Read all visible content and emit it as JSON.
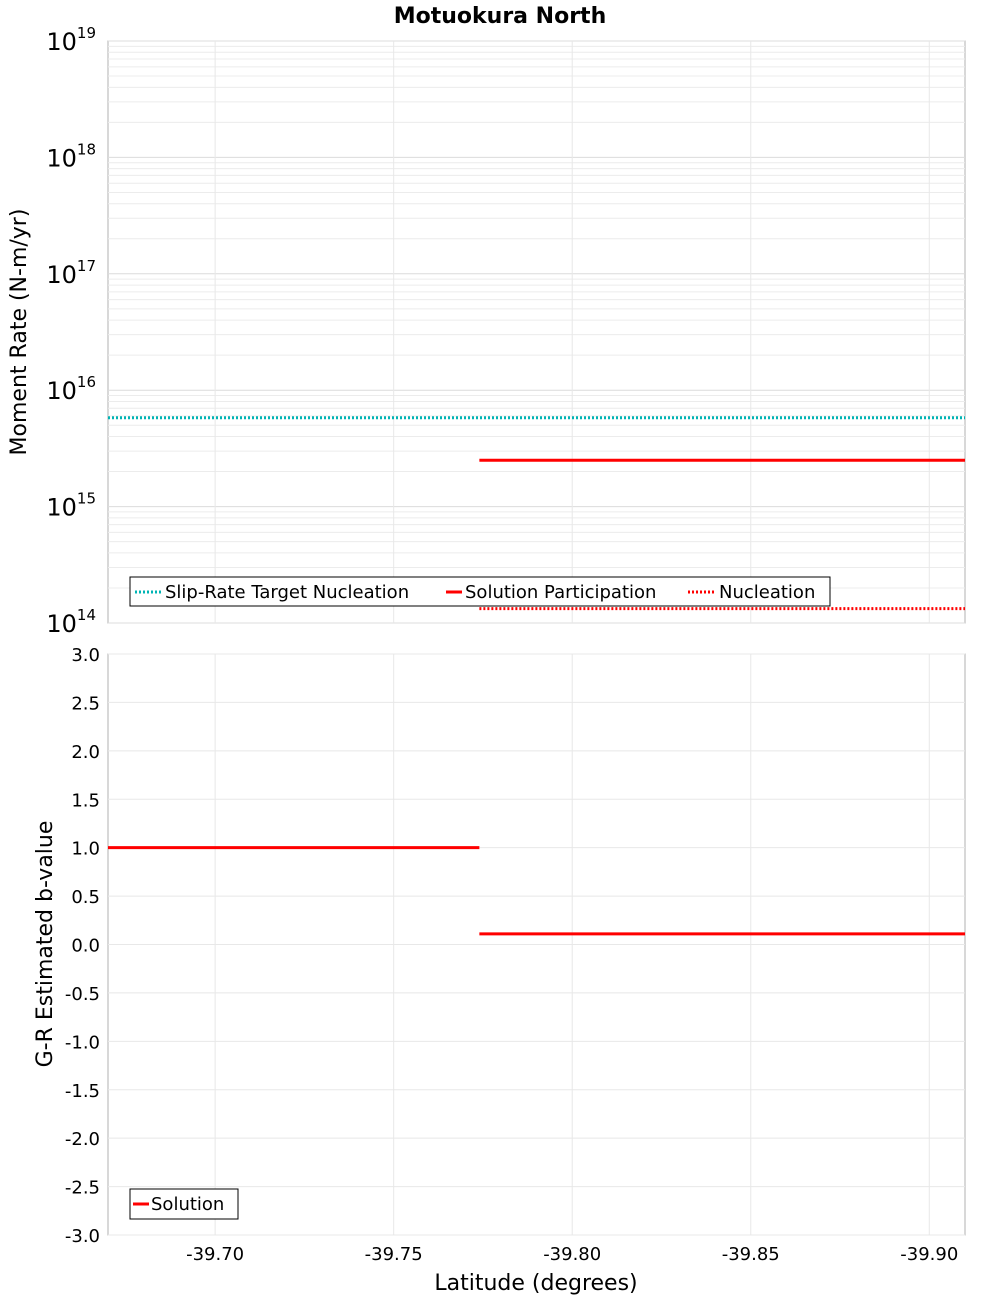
{
  "chart_data": [
    {
      "type": "line",
      "title": "Motuokura North",
      "ylabel": "Moment Rate (N-m/yr)",
      "yscale": "log",
      "ylim": [
        100000000000000.0,
        1e+19
      ],
      "xlim": [
        -39.67,
        -39.91
      ],
      "x_direction": "reversed",
      "grid": true,
      "legend_placement": "bottom-left",
      "ytick_labels": [
        {
          "base": "10",
          "exp": "14"
        },
        {
          "base": "10",
          "exp": "15"
        },
        {
          "base": "10",
          "exp": "16"
        },
        {
          "base": "10",
          "exp": "17"
        },
        {
          "base": "10",
          "exp": "18"
        },
        {
          "base": "10",
          "exp": "19"
        }
      ],
      "series": [
        {
          "name": "Slip-Rate Target Nucleation",
          "color": "#00b4b4",
          "style": "dotted",
          "segments": [
            [
              -39.67,
              5800000000000000.0
            ],
            [
              -39.91,
              5800000000000000.0
            ]
          ]
        },
        {
          "name": "Solution Participation",
          "color": "#ff0000",
          "style": "solid",
          "segments": [
            [
              -39.774,
              2500000000000000.0
            ],
            [
              -39.91,
              2500000000000000.0
            ]
          ]
        },
        {
          "name": "Nucleation",
          "color": "#ff0000",
          "style": "dotted",
          "segments": [
            [
              -39.774,
              133000000000000.0
            ],
            [
              -39.91,
              133000000000000.0
            ]
          ]
        }
      ]
    },
    {
      "type": "line",
      "xlabel": "Latitude (degrees)",
      "ylabel": "G-R Estimated b-value",
      "ylim": [
        -3.0,
        3.0
      ],
      "xlim": [
        -39.67,
        -39.91
      ],
      "x_direction": "reversed",
      "grid": true,
      "legend_placement": "bottom-left",
      "ytick_labels": [
        "-3.0",
        "-2.5",
        "-2.0",
        "-1.5",
        "-1.0",
        "-0.5",
        "0.0",
        "0.5",
        "1.0",
        "1.5",
        "2.0",
        "2.5",
        "3.0"
      ],
      "xtick_labels": [
        "-39.70",
        "-39.75",
        "-39.80",
        "-39.85",
        "-39.90"
      ],
      "series": [
        {
          "name": "Solution",
          "color": "#ff0000",
          "style": "solid",
          "segments": [
            [
              [
                -39.67,
                1.0
              ],
              [
                -39.774,
                1.0
              ]
            ],
            [
              [
                -39.774,
                0.11
              ],
              [
                -39.91,
                0.11
              ]
            ]
          ]
        }
      ]
    }
  ]
}
